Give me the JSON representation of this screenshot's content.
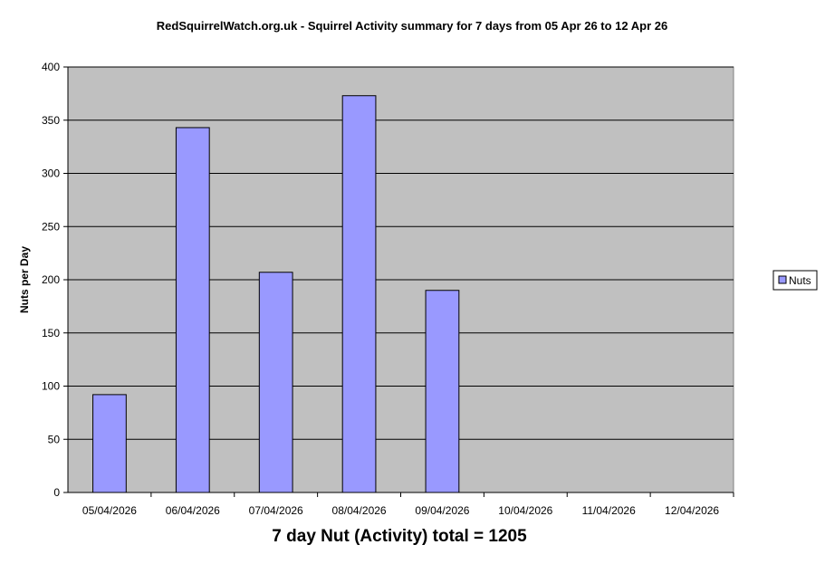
{
  "chart_data": {
    "type": "bar",
    "title": "RedSquirrelWatch.org.uk - Squirrel Activity summary for 7 days from 05 Apr 26 to 12 Apr 26",
    "xlabel": "",
    "ylabel": "Nuts per Day",
    "footer": "7 day Nut (Activity) total = 1205",
    "categories": [
      "05/04/2026",
      "06/04/2026",
      "07/04/2026",
      "08/04/2026",
      "09/04/2026",
      "10/04/2026",
      "11/04/2026",
      "12/04/2026"
    ],
    "series": [
      {
        "name": "Nuts",
        "values": [
          92,
          343,
          207,
          373,
          190,
          null,
          null,
          null
        ],
        "color": "#9999ff"
      }
    ],
    "ylim": [
      0,
      400
    ],
    "yticks": [
      0,
      50,
      100,
      150,
      200,
      250,
      300,
      350,
      400
    ],
    "grid": true,
    "legend": "right",
    "plot_background": "#c0c0c0"
  }
}
